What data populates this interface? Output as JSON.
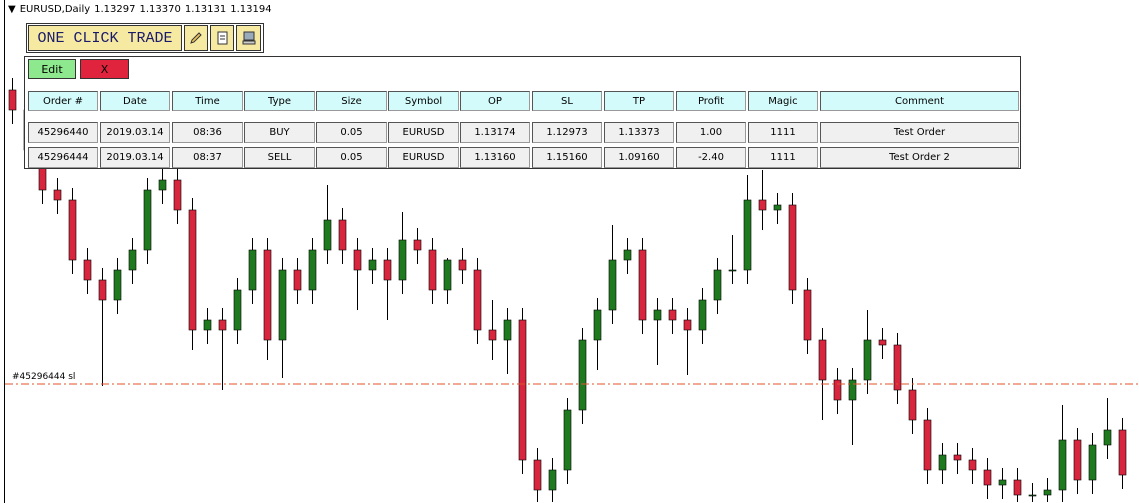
{
  "header": {
    "symbol": "EURUSD,Daily",
    "quotes": [
      "1.13297",
      "1.13370",
      "1.13131",
      "1.13194"
    ]
  },
  "panel": {
    "title": "ONE CLICK TRADE",
    "edit": "Edit",
    "close": "X",
    "columns": [
      "Order #",
      "Date",
      "Time",
      "Type",
      "Size",
      "Symbol",
      "OP",
      "SL",
      "TP",
      "Profit",
      "Magic",
      "Comment"
    ],
    "rows": [
      [
        "45296440",
        "2019.03.14",
        "08:36",
        "BUY",
        "0.05",
        "EURUSD",
        "1.13174",
        "1.12973",
        "1.13373",
        "1.00",
        "1111",
        "Test Order"
      ],
      [
        "45296444",
        "2019.03.14",
        "08:37",
        "SELL",
        "0.05",
        "EURUSD",
        "1.13160",
        "1.15160",
        "1.09160",
        "-2.40",
        "1111",
        "Test Order 2"
      ]
    ]
  },
  "chart_data": {
    "type": "candlestick",
    "ylim": [
      1.14565,
      1.1708
    ],
    "up_color": "#1f7a1f",
    "down_color": "#d7263d",
    "sl_line": {
      "label": "#45296444 sl",
      "value": 1.1516,
      "color": "#e0542a"
    },
    "candles": [
      [
        1.1663,
        1.1669,
        1.1646,
        1.1653
      ],
      [
        1.1653,
        1.1659,
        1.1626,
        1.1633
      ],
      [
        1.1633,
        1.1639,
        1.1606,
        1.1613
      ],
      [
        1.1613,
        1.1619,
        1.1601,
        1.1608
      ],
      [
        1.1608,
        1.1614,
        1.1571,
        1.1578
      ],
      [
        1.1578,
        1.1584,
        1.1561,
        1.1568
      ],
      [
        1.1568,
        1.1574,
        1.1515,
        1.1558
      ],
      [
        1.1558,
        1.1579,
        1.1551,
        1.1573
      ],
      [
        1.1573,
        1.1589,
        1.1566,
        1.1583
      ],
      [
        1.1583,
        1.1619,
        1.1576,
        1.1613
      ],
      [
        1.1613,
        1.1624,
        1.1606,
        1.1618
      ],
      [
        1.1618,
        1.1624,
        1.1596,
        1.1603
      ],
      [
        1.1603,
        1.1609,
        1.1533,
        1.1543
      ],
      [
        1.1543,
        1.1554,
        1.1536,
        1.1548
      ],
      [
        1.1548,
        1.1554,
        1.1513,
        1.1543
      ],
      [
        1.1543,
        1.1569,
        1.1536,
        1.1563
      ],
      [
        1.1563,
        1.1589,
        1.1556,
        1.1583
      ],
      [
        1.1583,
        1.1589,
        1.1528,
        1.1538
      ],
      [
        1.1538,
        1.1579,
        1.1519,
        1.1573
      ],
      [
        1.1573,
        1.1579,
        1.1556,
        1.1563
      ],
      [
        1.1563,
        1.1589,
        1.1556,
        1.1583
      ],
      [
        1.1583,
        1.16155,
        1.1576,
        1.1598
      ],
      [
        1.1598,
        1.1604,
        1.1576,
        1.1583
      ],
      [
        1.1583,
        1.1589,
        1.1553,
        1.1573
      ],
      [
        1.1573,
        1.1584,
        1.1566,
        1.1578
      ],
      [
        1.1578,
        1.1584,
        1.1548,
        1.1568
      ],
      [
        1.1568,
        1.1602,
        1.1561,
        1.1588
      ],
      [
        1.1588,
        1.1594,
        1.1576,
        1.1583
      ],
      [
        1.1583,
        1.1589,
        1.1556,
        1.1563
      ],
      [
        1.1563,
        1.1579,
        1.1556,
        1.1578
      ],
      [
        1.1578,
        1.1584,
        1.1566,
        1.1573
      ],
      [
        1.1573,
        1.1579,
        1.1536,
        1.1543
      ],
      [
        1.1543,
        1.1558,
        1.1528,
        1.1538
      ],
      [
        1.1538,
        1.1554,
        1.1521,
        1.1548
      ],
      [
        1.1548,
        1.1554,
        1.1471,
        1.1478
      ],
      [
        1.1478,
        1.1484,
        1.1457,
        1.1463
      ],
      [
        1.1463,
        1.1479,
        1.1457,
        1.1473
      ],
      [
        1.1473,
        1.1509,
        1.1466,
        1.1503
      ],
      [
        1.1503,
        1.1544,
        1.1496,
        1.1538
      ],
      [
        1.1538,
        1.1559,
        1.1523,
        1.1553
      ],
      [
        1.1553,
        1.15955,
        1.1546,
        1.1578
      ],
      [
        1.1578,
        1.1589,
        1.1571,
        1.1583
      ],
      [
        1.1583,
        1.1589,
        1.1541,
        1.1548
      ],
      [
        1.1548,
        1.1559,
        1.15255,
        1.1553
      ],
      [
        1.1553,
        1.1559,
        1.1541,
        1.1548
      ],
      [
        1.1548,
        1.1554,
        1.15205,
        1.1543
      ],
      [
        1.1543,
        1.1564,
        1.1536,
        1.1558
      ],
      [
        1.1558,
        1.1579,
        1.1551,
        1.1573
      ],
      [
        1.1573,
        1.15905,
        1.1566,
        1.1573
      ],
      [
        1.1573,
        1.16205,
        1.1566,
        1.1608
      ],
      [
        1.1608,
        1.1623,
        1.1593,
        1.1603
      ],
      [
        1.1603,
        1.16115,
        1.1596,
        1.16055
      ],
      [
        1.16055,
        1.16115,
        1.1556,
        1.1563
      ],
      [
        1.1563,
        1.1569,
        1.1531,
        1.1538
      ],
      [
        1.1538,
        1.1544,
        1.1498,
        1.1518
      ],
      [
        1.1518,
        1.1524,
        1.1501,
        1.1508
      ],
      [
        1.1508,
        1.1524,
        1.14855,
        1.1518
      ],
      [
        1.1518,
        1.1553,
        1.1511,
        1.1538
      ],
      [
        1.1538,
        1.1544,
        1.15285,
        1.15355
      ],
      [
        1.15355,
        1.15415,
        1.1506,
        1.1513
      ],
      [
        1.1513,
        1.1519,
        1.1491,
        1.1498
      ],
      [
        1.1498,
        1.1504,
        1.1466,
        1.1473
      ],
      [
        1.1473,
        1.14865,
        1.1466,
        1.14805
      ],
      [
        1.14805,
        1.14865,
        1.1471,
        1.1478
      ],
      [
        1.1478,
        1.1484,
        1.1466,
        1.1473
      ],
      [
        1.1473,
        1.1479,
        1.14585,
        1.14655
      ],
      [
        1.14655,
        1.1474,
        1.14585,
        1.1468
      ],
      [
        1.1468,
        1.1474,
        1.1457,
        1.14605
      ],
      [
        1.14605,
        1.14665,
        1.1457,
        1.14605
      ],
      [
        1.14605,
        1.1469,
        1.1457,
        1.1463
      ],
      [
        1.1463,
        1.15055,
        1.1457,
        1.1488
      ],
      [
        1.1488,
        1.1494,
        1.1461,
        1.1468
      ],
      [
        1.1468,
        1.14915,
        1.1461,
        1.14855
      ],
      [
        1.14855,
        1.1509,
        1.14785,
        1.1493
      ],
      [
        1.1493,
        1.1499,
        1.14635,
        1.14705
      ]
    ]
  }
}
